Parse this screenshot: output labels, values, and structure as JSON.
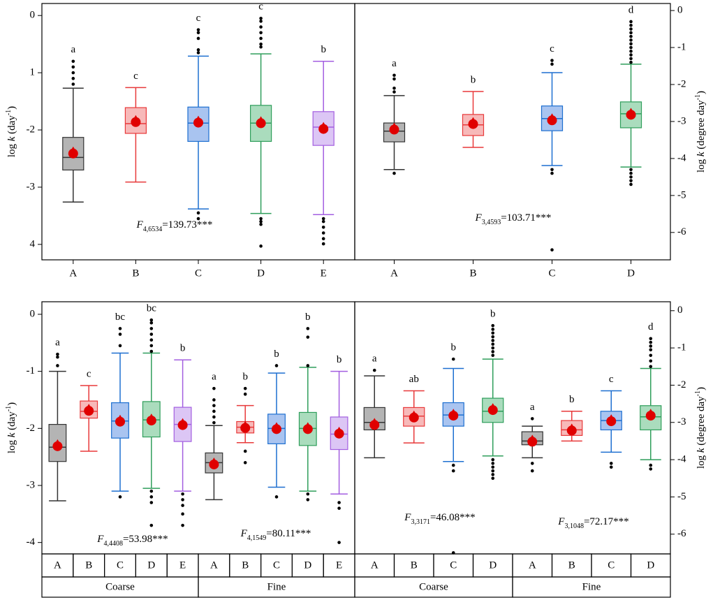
{
  "chart_data": [
    {
      "type": "box",
      "axis_side": "left",
      "ylabel": [
        "log ",
        "k",
        " (day",
        "-1",
        ")"
      ],
      "ylim": [
        -4.27,
        0.21
      ],
      "yticks": [
        0,
        {
          "value": -1,
          "label": "1"
        },
        -2,
        -3,
        {
          "value": -4,
          "label": "4"
        }
      ],
      "groups": [
        {
          "annotation": [
            "F",
            "4,6534",
            "=139.73***"
          ],
          "boxes": [
            {
              "name": "A",
              "color": "#333333",
              "fill": "#b4b4b4",
              "whishi": -1.27,
              "q3": -2.13,
              "med": -2.48,
              "q1": -2.7,
              "whislo": -3.26,
              "mean": -2.4,
              "fliers": [
                -0.8,
                -0.9,
                -1.0,
                -1.1,
                -1.2
              ],
              "letter": "a"
            },
            {
              "name": "B",
              "color": "#e8393a",
              "fill": "#f7b9b9",
              "whishi": -1.26,
              "q3": -1.61,
              "med": -1.89,
              "q1": -2.06,
              "whislo": -2.91,
              "mean": -1.85,
              "fliers": [],
              "letter": "c"
            },
            {
              "name": "C",
              "color": "#1d6fd0",
              "fill": "#a9c4f0",
              "whishi": -0.71,
              "q3": -1.6,
              "med": -1.88,
              "q1": -2.2,
              "whislo": -3.38,
              "mean": -1.86,
              "fliers": [
                -0.25,
                -0.3,
                -0.4,
                -0.6,
                -0.65,
                -3.45,
                -3.55
              ],
              "letter": "c"
            },
            {
              "name": "D",
              "color": "#2f9e5b",
              "fill": "#aadcbd",
              "whishi": -0.67,
              "q3": -1.57,
              "med": -1.88,
              "q1": -2.2,
              "whislo": -3.46,
              "mean": -1.87,
              "fliers": [
                -0.05,
                -0.1,
                -0.2,
                -0.3,
                -0.4,
                -0.5,
                -0.55,
                -3.55,
                -3.6,
                -3.65,
                -4.03
              ],
              "letter": "c"
            },
            {
              "name": "E",
              "color": "#a35ee0",
              "fill": "#dcc6f5",
              "whishi": -0.8,
              "q3": -1.68,
              "med": -1.95,
              "q1": -2.27,
              "whislo": -3.48,
              "mean": -1.97,
              "fliers": [
                -3.55,
                -3.6,
                -3.7,
                -3.8,
                -3.9,
                -3.99
              ],
              "letter": "b"
            }
          ]
        }
      ]
    },
    {
      "type": "box",
      "axis_side": "right",
      "ylabel": [
        "log ",
        "k",
        " (degree day",
        "-1",
        ")"
      ],
      "ylim": [
        -6.74,
        0.19
      ],
      "yticks": [
        0,
        -1,
        -2,
        -3,
        -4,
        -5,
        -6
      ],
      "groups": [
        {
          "annotation": [
            "F",
            "3,4593",
            "=103.71***"
          ],
          "boxes": [
            {
              "name": "A",
              "color": "#333333",
              "fill": "#b4b4b4",
              "whishi": -2.3,
              "q3": -3.04,
              "med": -3.26,
              "q1": -3.55,
              "whislo": -4.3,
              "mean": -3.2,
              "fliers": [
                -1.75,
                -1.85,
                -2.1,
                -2.2,
                -4.4
              ],
              "letter": "a"
            },
            {
              "name": "B",
              "color": "#e8393a",
              "fill": "#f7b9b9",
              "whishi": -2.19,
              "q3": -2.81,
              "med": -3.09,
              "q1": -3.38,
              "whislo": -3.7,
              "mean": -3.05,
              "fliers": [],
              "letter": "b"
            },
            {
              "name": "C",
              "color": "#1d6fd0",
              "fill": "#a9c4f0",
              "whishi": -1.68,
              "q3": -2.58,
              "med": -2.92,
              "q1": -3.25,
              "whislo": -4.19,
              "mean": -2.95,
              "fliers": [
                -1.35,
                -1.45,
                -4.3,
                -4.4,
                -6.47
              ],
              "letter": "c"
            },
            {
              "name": "D",
              "color": "#2f9e5b",
              "fill": "#aadcbd",
              "whishi": -1.45,
              "q3": -2.47,
              "med": -2.79,
              "q1": -3.17,
              "whislo": -4.23,
              "mean": -2.8,
              "fliers": [
                -0.3,
                -0.4,
                -0.5,
                -0.6,
                -0.7,
                -0.8,
                -0.9,
                -1.0,
                -1.1,
                -1.2,
                -1.3,
                -1.4,
                -4.3,
                -4.4,
                -4.5,
                -4.6,
                -4.7
              ],
              "letter": "d"
            }
          ]
        }
      ]
    },
    {
      "type": "box",
      "axis_side": "left",
      "ylabel": [
        "log ",
        "k",
        " (day",
        "-1",
        ")"
      ],
      "ylim": [
        -4.2,
        0.22
      ],
      "yticks": [
        0,
        -1,
        -2,
        -3,
        -4
      ],
      "groups": [
        {
          "name": "Coarse",
          "annotation": [
            "F",
            "4,4408",
            "=53.98***"
          ],
          "boxes": [
            {
              "name": "A",
              "color": "#333333",
              "fill": "#b4b4b4",
              "whishi": -1.0,
              "q3": -1.93,
              "med": -2.33,
              "q1": -2.58,
              "whislo": -3.27,
              "mean": -2.3,
              "fliers": [
                -0.7,
                -0.75,
                -0.9
              ],
              "letter": "a"
            },
            {
              "name": "B",
              "color": "#e8393a",
              "fill": "#f7b9b9",
              "whishi": -1.25,
              "q3": -1.52,
              "med": -1.7,
              "q1": -1.82,
              "whislo": -2.4,
              "mean": -1.68,
              "fliers": [],
              "letter": "c"
            },
            {
              "name": "C",
              "color": "#1d6fd0",
              "fill": "#a9c4f0",
              "whishi": -0.68,
              "q3": -1.55,
              "med": -1.87,
              "q1": -2.17,
              "whislo": -3.1,
              "mean": -1.87,
              "fliers": [
                -0.25,
                -0.35,
                -0.55,
                -3.2
              ],
              "letter": "bc"
            },
            {
              "name": "D",
              "color": "#2f9e5b",
              "fill": "#aadcbd",
              "whishi": -0.68,
              "q3": -1.53,
              "med": -1.85,
              "q1": -2.15,
              "whislo": -3.05,
              "mean": -1.85,
              "fliers": [
                -0.1,
                -0.15,
                -0.25,
                -0.35,
                -0.45,
                -0.55,
                -0.65,
                -3.1,
                -3.2,
                -3.3,
                -3.7
              ],
              "letter": "bc"
            },
            {
              "name": "E",
              "color": "#a35ee0",
              "fill": "#dcc6f5",
              "whishi": -0.8,
              "q3": -1.63,
              "med": -1.93,
              "q1": -2.23,
              "whislo": -3.1,
              "mean": -1.93,
              "fliers": [
                -3.15,
                -3.25,
                -3.35,
                -3.5,
                -3.7
              ],
              "letter": "b"
            }
          ]
        },
        {
          "name": "Fine",
          "annotation": [
            "F",
            "4,1549",
            "=80.11***"
          ],
          "boxes": [
            {
              "name": "A",
              "color": "#333333",
              "fill": "#b4b4b4",
              "whishi": -1.95,
              "q3": -2.43,
              "med": -2.6,
              "q1": -2.78,
              "whislo": -3.25,
              "mean": -2.62,
              "fliers": [
                -1.3,
                -1.5,
                -1.6,
                -1.7,
                -1.8,
                -1.9
              ],
              "letter": "a"
            },
            {
              "name": "B",
              "color": "#e8393a",
              "fill": "#f7b9b9",
              "whishi": -1.6,
              "q3": -1.88,
              "med": -1.98,
              "q1": -2.08,
              "whislo": -2.25,
              "mean": -1.98,
              "fliers": [
                -1.3,
                -1.4,
                -2.4,
                -2.6
              ],
              "letter": "b"
            },
            {
              "name": "C",
              "color": "#1d6fd0",
              "fill": "#a9c4f0",
              "whishi": -1.03,
              "q3": -1.75,
              "med": -2.0,
              "q1": -2.27,
              "whislo": -3.03,
              "mean": -2.0,
              "fliers": [
                -0.9,
                -3.2
              ],
              "letter": "b"
            },
            {
              "name": "D",
              "color": "#2f9e5b",
              "fill": "#aadcbd",
              "whishi": -0.93,
              "q3": -1.72,
              "med": -2.0,
              "q1": -2.3,
              "whislo": -3.1,
              "mean": -2.0,
              "fliers": [
                -0.25,
                -0.4,
                -0.9,
                -3.15,
                -3.25
              ],
              "letter": "b"
            },
            {
              "name": "E",
              "color": "#a35ee0",
              "fill": "#dcc6f5",
              "whishi": -1.0,
              "q3": -1.8,
              "med": -2.1,
              "q1": -2.37,
              "whislo": -3.15,
              "mean": -2.08,
              "fliers": [
                -3.3,
                -3.4,
                -4.0
              ],
              "letter": "b"
            }
          ]
        }
      ]
    },
    {
      "type": "box",
      "axis_side": "right",
      "ylabel": [
        "log ",
        "k",
        " (degree day",
        "-1",
        ")"
      ],
      "ylim": [
        -6.53,
        0.24
      ],
      "yticks": [
        0,
        -1,
        -2,
        -3,
        -4,
        -5,
        -6
      ],
      "groups": [
        {
          "name": "Coarse",
          "annotation": [
            "F",
            "3,3171",
            "=46.08***"
          ],
          "boxes": [
            {
              "name": "A",
              "color": "#333333",
              "fill": "#b4b4b4",
              "whishi": -1.75,
              "q3": -2.6,
              "med": -3.0,
              "q1": -3.2,
              "whislo": -3.95,
              "mean": -3.05,
              "fliers": [
                -1.6
              ],
              "letter": "a"
            },
            {
              "name": "B",
              "color": "#e8393a",
              "fill": "#f7b9b9",
              "whishi": -2.15,
              "q3": -2.6,
              "med": -2.83,
              "q1": -3.1,
              "whislo": -3.55,
              "mean": -2.85,
              "fliers": [],
              "letter": "ab"
            },
            {
              "name": "C",
              "color": "#1d6fd0",
              "fill": "#a9c4f0",
              "whishi": -1.55,
              "q3": -2.47,
              "med": -2.8,
              "q1": -3.1,
              "whislo": -4.05,
              "mean": -2.8,
              "fliers": [
                -1.3,
                -4.15,
                -4.3,
                -6.5
              ],
              "letter": "b"
            },
            {
              "name": "D",
              "color": "#2f9e5b",
              "fill": "#aadcbd",
              "whishi": -1.3,
              "q3": -2.35,
              "med": -2.7,
              "q1": -3.0,
              "whislo": -3.9,
              "mean": -2.65,
              "fliers": [
                -0.4,
                -0.5,
                -0.6,
                -0.7,
                -0.8,
                -0.9,
                -1.0,
                -1.1,
                -1.2,
                -4.0,
                -4.1,
                -4.2,
                -4.3,
                -4.4,
                -4.5
              ],
              "letter": "b"
            }
          ]
        },
        {
          "name": "Fine",
          "annotation": [
            "F",
            "3,1048",
            "=72.17***"
          ],
          "boxes": [
            {
              "name": "A",
              "color": "#333333",
              "fill": "#b4b4b4",
              "whishi": -3.1,
              "q3": -3.25,
              "med": -3.5,
              "q1": -3.6,
              "whislo": -3.95,
              "mean": -3.5,
              "fliers": [
                -2.9,
                -4.1,
                -4.3
              ],
              "letter": "a"
            },
            {
              "name": "B",
              "color": "#e8393a",
              "fill": "#f7b9b9",
              "whishi": -2.7,
              "q3": -2.95,
              "med": -3.2,
              "q1": -3.35,
              "whislo": -3.5,
              "mean": -3.2,
              "fliers": [],
              "letter": "b"
            },
            {
              "name": "C",
              "color": "#1d6fd0",
              "fill": "#a9c4f0",
              "whishi": -2.15,
              "q3": -2.7,
              "med": -2.95,
              "q1": -3.2,
              "whislo": -3.8,
              "mean": -2.95,
              "fliers": [
                -4.1,
                -4.2
              ],
              "letter": "c"
            },
            {
              "name": "D",
              "color": "#2f9e5b",
              "fill": "#aadcbd",
              "whishi": -1.55,
              "q3": -2.55,
              "med": -2.85,
              "q1": -3.2,
              "whislo": -4.0,
              "mean": -2.8,
              "fliers": [
                -0.75,
                -0.85,
                -0.95,
                -1.05,
                -1.2,
                -1.35,
                -1.5,
                -4.15,
                -4.25
              ],
              "letter": "d"
            }
          ]
        }
      ]
    }
  ]
}
